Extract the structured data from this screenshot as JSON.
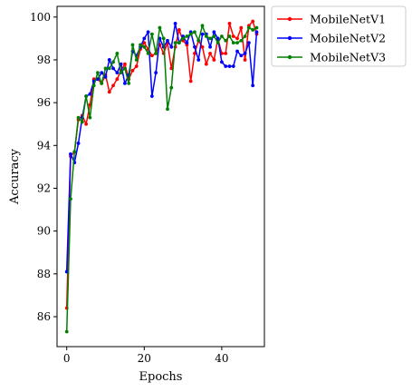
{
  "chart_data": {
    "type": "line",
    "xlabel": "Epochs",
    "ylabel": "Accuracy",
    "xlim": [
      -2.5,
      51
    ],
    "ylim": [
      84.6,
      100.5
    ],
    "xticks": [
      0,
      20,
      40
    ],
    "yticks": [
      86,
      88,
      90,
      92,
      94,
      96,
      98,
      100
    ],
    "grid": false,
    "legend_position": "outside-top-right",
    "x": [
      0,
      1,
      2,
      3,
      4,
      5,
      6,
      7,
      8,
      9,
      10,
      11,
      12,
      13,
      14,
      15,
      16,
      17,
      18,
      19,
      20,
      21,
      22,
      23,
      24,
      25,
      26,
      27,
      28,
      29,
      30,
      31,
      32,
      33,
      34,
      35,
      36,
      37,
      38,
      39,
      40,
      41,
      42,
      43,
      44,
      45,
      46,
      47,
      48,
      49
    ],
    "series": [
      {
        "name": "MobileNetV1",
        "color": "#ff0000",
        "values": [
          86.4,
          93.5,
          93.7,
          95.2,
          95.4,
          95.0,
          95.9,
          97.1,
          97.1,
          96.9,
          97.3,
          96.5,
          96.8,
          97.1,
          97.5,
          97.8,
          97.1,
          97.5,
          97.7,
          98.5,
          98.8,
          98.5,
          98.2,
          98.3,
          98.7,
          98.3,
          98.8,
          97.6,
          98.6,
          99.4,
          98.9,
          98.7,
          97.0,
          98.3,
          98.9,
          98.6,
          97.8,
          98.3,
          98.0,
          99.0,
          98.3,
          98.3,
          99.7,
          99.1,
          99.0,
          99.5,
          98.0,
          99.6,
          99.8,
          99.2
        ]
      },
      {
        "name": "MobileNetV2",
        "color": "#0000ff",
        "values": [
          88.1,
          93.6,
          93.2,
          94.1,
          95.3,
          96.3,
          96.4,
          97.0,
          97.1,
          97.4,
          97.2,
          98.0,
          97.6,
          97.4,
          97.8,
          96.9,
          97.3,
          98.4,
          98.2,
          98.6,
          99.0,
          99.3,
          96.3,
          97.4,
          99.0,
          98.6,
          98.9,
          98.6,
          99.7,
          98.8,
          99.1,
          98.8,
          99.3,
          98.6,
          98.0,
          99.2,
          99.2,
          98.6,
          99.3,
          99.0,
          97.9,
          97.7,
          97.7,
          97.7,
          98.4,
          98.2,
          98.3,
          98.8,
          96.8,
          99.3
        ]
      },
      {
        "name": "MobileNetV3",
        "color": "#008000",
        "values": [
          85.3,
          91.5,
          93.7,
          95.3,
          95.1,
          96.3,
          95.3,
          96.8,
          97.4,
          96.9,
          97.6,
          97.6,
          97.9,
          98.3,
          97.4,
          97.6,
          96.9,
          98.7,
          98.0,
          98.7,
          98.6,
          98.3,
          99.2,
          98.3,
          99.5,
          99.0,
          95.7,
          96.7,
          98.8,
          98.8,
          99.0,
          99.1,
          99.2,
          99.3,
          98.9,
          99.6,
          99.1,
          99.0,
          99.1,
          98.8,
          99.1,
          98.9,
          99.1,
          98.8,
          98.8,
          98.9,
          99.1,
          99.5,
          99.4,
          99.5
        ]
      }
    ]
  }
}
